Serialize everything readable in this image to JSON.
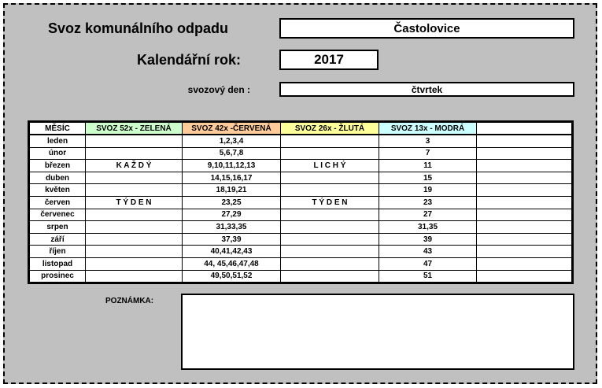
{
  "header": {
    "title": "Svoz komunálního odpadu",
    "town": "Častolovice",
    "year_label": "Kalendářní rok:",
    "year": "2017",
    "day_label": "svozový den :",
    "day": "čtvrtek"
  },
  "table": {
    "headers": [
      "MĚSÍC",
      "SVOZ 52x - ZELENÁ",
      "SVOZ 42x -ČERVENÁ",
      "SVOZ 26x - ŽLUTÁ",
      "SVOZ 13x - MODRÁ"
    ],
    "rows": [
      {
        "month": "leden",
        "red": "1,2,3,4",
        "blue": "3"
      },
      {
        "month": "únor",
        "red": "5,6,7,8",
        "blue": "7"
      },
      {
        "month": "březen",
        "green": "K A Ž D Ý",
        "red": "9,10,11,12,13",
        "yellow": "L I C H Ý",
        "blue": "11"
      },
      {
        "month": "duben",
        "red": "14,15,16,17",
        "blue": "15"
      },
      {
        "month": "květen",
        "red": "18,19,21",
        "blue": "19"
      },
      {
        "month": "červen",
        "green": "T Ý D E N",
        "red": "23,25",
        "yellow": "T Ý D E N",
        "blue": "23"
      },
      {
        "month": "červenec",
        "red": "27,29",
        "blue": "27"
      },
      {
        "month": "srpen",
        "red": "31,33,35",
        "blue": "31,35"
      },
      {
        "month": "září",
        "red": "37,39",
        "blue": "39"
      },
      {
        "month": "říjen",
        "red": "40,41,42,43",
        "blue": "43"
      },
      {
        "month": "listopad",
        "red": "44, 45,46,47,48",
        "blue": "47"
      },
      {
        "month": "prosinec",
        "red": "49,50,51,52",
        "blue": "51"
      }
    ]
  },
  "note": {
    "label": "POZNÁMKA:"
  }
}
